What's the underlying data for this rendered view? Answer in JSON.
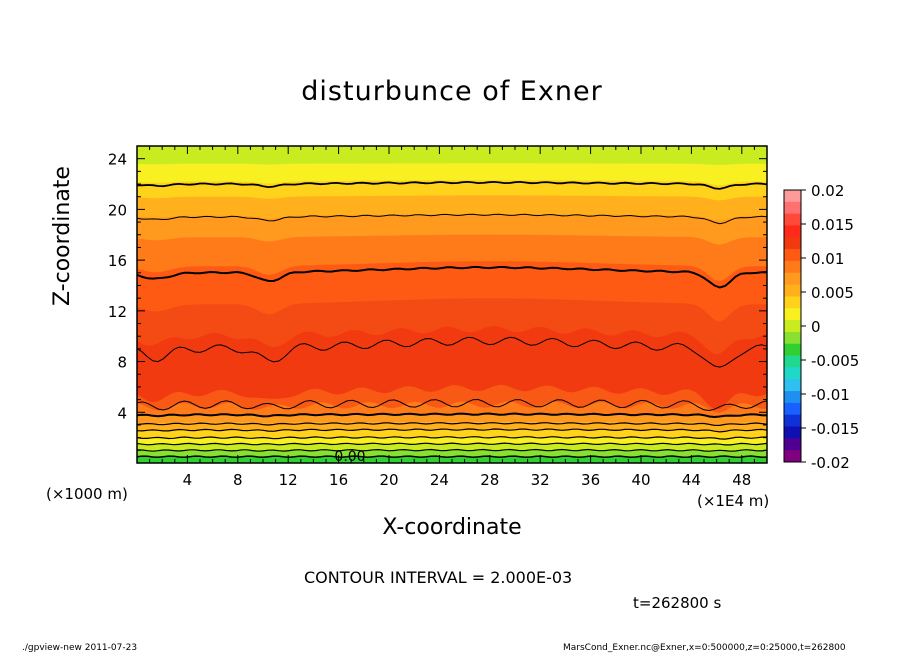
{
  "chart_data": {
    "type": "heatmap",
    "title": "disturbunce of Exner",
    "xlabel": "X-coordinate",
    "ylabel": "Z-coordinate",
    "x_unit_left": "(×1000 m)",
    "x_unit_right": "(×1E4 m)",
    "xlim": [
      0,
      50
    ],
    "ylim": [
      0,
      25
    ],
    "x_ticks": [
      4,
      8,
      12,
      16,
      20,
      24,
      28,
      32,
      36,
      40,
      44,
      48
    ],
    "y_ticks": [
      4,
      8,
      12,
      16,
      20,
      24
    ],
    "colorbar": {
      "ticks": [
        "0.02",
        "0.015",
        "0.01",
        "0.005",
        "0",
        "-0.005",
        "-0.01",
        "-0.015",
        "-0.02"
      ],
      "range": [
        -0.02,
        0.02
      ],
      "colors": [
        "#ff9a9a",
        "#ff7070",
        "#ff4a3a",
        "#ff2a1a",
        "#f23a10",
        "#ff5a14",
        "#ff7a18",
        "#ff9a1e",
        "#ffb01c",
        "#ffd21c",
        "#f8f020",
        "#c8ec20",
        "#88e030",
        "#30d030",
        "#20d890",
        "#20d8c8",
        "#30c0f0",
        "#2090f0",
        "#1860ff",
        "#1030d8",
        "#1010b0",
        "#500090",
        "#800080"
      ]
    },
    "contour_interval": "CONTOUR INTERVAL = 2.000E-03",
    "contour_label": "0.00",
    "contour_levels": [
      0.0,
      0.002,
      0.004,
      0.006,
      0.008,
      0.01,
      0.012,
      0.014
    ],
    "contour_heights_center": [
      0.5,
      1.2,
      2.0,
      3.0,
      4.0,
      10.0,
      16.0,
      19.5,
      22.2
    ],
    "time": "t=262800 s"
  },
  "footer": {
    "left": "./gpview-new   2011-07-23",
    "right": "MarsCond_Exner.nc@Exner,x=0:500000,z=0:25000,t=262800"
  }
}
